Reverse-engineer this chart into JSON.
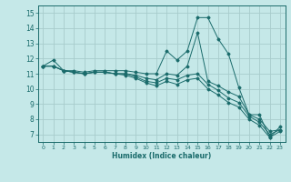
{
  "xlabel": "Humidex (Indice chaleur)",
  "background_color": "#c5e8e8",
  "grid_color": "#a8cccc",
  "line_color": "#1a6b6b",
  "xlim": [
    -0.5,
    23.5
  ],
  "ylim": [
    6.5,
    15.5
  ],
  "xticks": [
    0,
    1,
    2,
    3,
    4,
    5,
    6,
    7,
    8,
    9,
    10,
    11,
    12,
    13,
    14,
    15,
    16,
    17,
    18,
    19,
    20,
    21,
    22,
    23
  ],
  "yticks": [
    7,
    8,
    9,
    10,
    11,
    12,
    13,
    14,
    15
  ],
  "series": [
    [
      11.5,
      11.9,
      11.2,
      11.2,
      11.1,
      11.2,
      11.2,
      11.2,
      11.2,
      11.1,
      11.0,
      11.0,
      12.5,
      11.9,
      12.5,
      14.7,
      14.7,
      13.3,
      12.3,
      10.1,
      8.3,
      8.3,
      6.8,
      7.5
    ],
    [
      11.5,
      11.5,
      11.2,
      11.1,
      11.0,
      11.1,
      11.1,
      11.0,
      11.0,
      10.9,
      10.7,
      10.6,
      11.0,
      10.9,
      11.5,
      13.7,
      10.5,
      10.2,
      9.8,
      9.5,
      8.3,
      8.0,
      7.2,
      7.3
    ],
    [
      11.5,
      11.5,
      11.2,
      11.1,
      11.0,
      11.1,
      11.1,
      11.0,
      11.0,
      10.8,
      10.5,
      10.4,
      10.7,
      10.6,
      10.9,
      11.0,
      10.3,
      9.9,
      9.4,
      9.1,
      8.2,
      7.8,
      7.0,
      7.3
    ],
    [
      11.5,
      11.5,
      11.2,
      11.1,
      11.0,
      11.1,
      11.1,
      11.0,
      10.9,
      10.7,
      10.4,
      10.2,
      10.5,
      10.3,
      10.6,
      10.7,
      10.0,
      9.6,
      9.1,
      8.8,
      8.0,
      7.6,
      6.8,
      7.2
    ]
  ]
}
